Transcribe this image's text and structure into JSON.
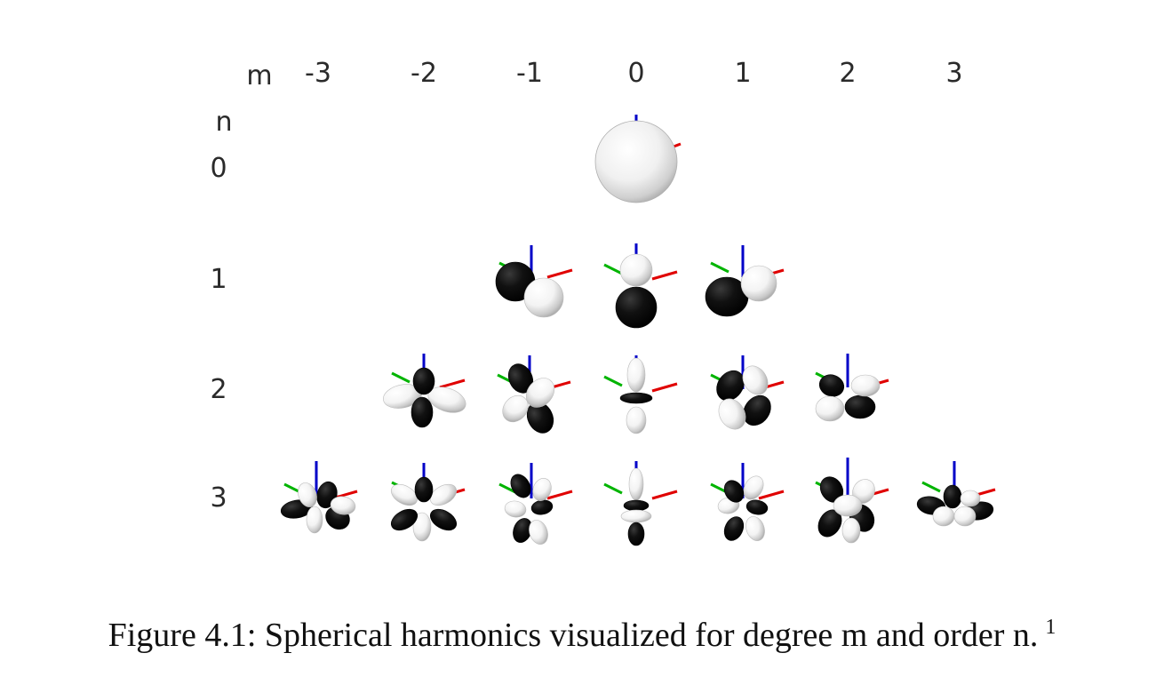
{
  "axes": {
    "m_label": "m",
    "n_label": "n",
    "m_values": [
      "-3",
      "-2",
      "-1",
      "0",
      "1",
      "2",
      "3"
    ],
    "n_values": [
      "0",
      "1",
      "2",
      "3"
    ]
  },
  "colors": {
    "positive_lobe": "#f2f2f2",
    "negative_lobe": "#050505",
    "x_axis": "#e00000",
    "y_axis": "#00b400",
    "z_axis": "#0000c8"
  },
  "cells": [
    {
      "n": 0,
      "m": 0
    },
    {
      "n": 1,
      "m": -1
    },
    {
      "n": 1,
      "m": 0
    },
    {
      "n": 1,
      "m": 1
    },
    {
      "n": 2,
      "m": -2
    },
    {
      "n": 2,
      "m": -1
    },
    {
      "n": 2,
      "m": 0
    },
    {
      "n": 2,
      "m": 1
    },
    {
      "n": 2,
      "m": 2
    },
    {
      "n": 3,
      "m": -3
    },
    {
      "n": 3,
      "m": -2
    },
    {
      "n": 3,
      "m": -1
    },
    {
      "n": 3,
      "m": 0
    },
    {
      "n": 3,
      "m": 1
    },
    {
      "n": 3,
      "m": 2
    },
    {
      "n": 3,
      "m": 3
    }
  ],
  "caption": {
    "text": "Figure 4.1: Spherical harmonics visualized for degree m and order n.",
    "footnote_mark": "1"
  }
}
